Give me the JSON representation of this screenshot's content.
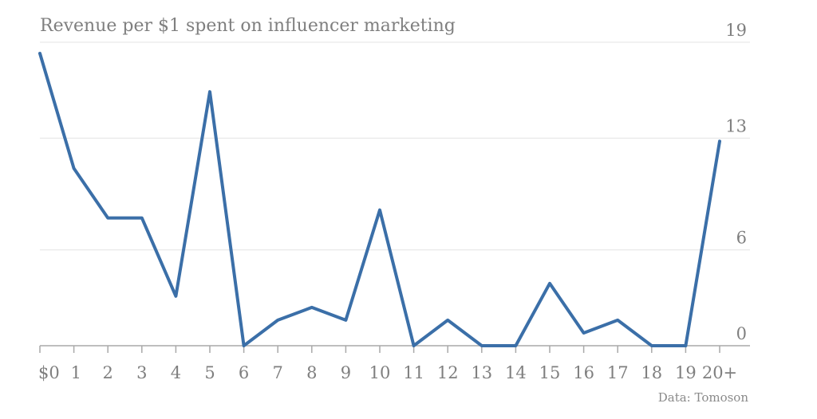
{
  "chart_data": {
    "type": "line",
    "title": "Revenue per $1 spent on influencer marketing",
    "source": "Data: Tomoson",
    "categories": [
      "$0",
      "1",
      "2",
      "3",
      "4",
      "5",
      "6",
      "7",
      "8",
      "9",
      "10",
      "11",
      "12",
      "13",
      "14",
      "15",
      "16",
      "17",
      "18",
      "19",
      "20+"
    ],
    "series": [
      {
        "values": [
          18.3,
          11.1,
          8.0,
          8.0,
          3.1,
          15.9,
          0,
          1.6,
          2.4,
          1.6,
          8.5,
          0,
          1.6,
          0,
          0,
          3.9,
          0.8,
          1.6,
          0,
          0,
          12.8
        ]
      }
    ],
    "y_ticks": [
      "0",
      "6",
      "13",
      "19"
    ],
    "ylim": [
      0,
      19.2
    ],
    "grid": true,
    "colors": {
      "line": "#3b6fa8",
      "grid": "#e3e3e3",
      "axis": "#a9a9a9",
      "text": "#7f7f7f"
    }
  }
}
